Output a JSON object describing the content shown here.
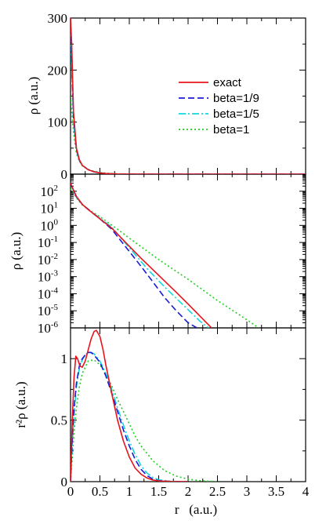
{
  "figure": {
    "xlabel": "r   (a.u.)",
    "x_ticks": [
      "0",
      "0.5",
      "1",
      "1.5",
      "2",
      "2.5",
      "3",
      "3.5",
      "4"
    ],
    "xlim": [
      0,
      4
    ]
  },
  "legend": {
    "placement": "top-right of top panel",
    "entries": [
      {
        "name": "exact",
        "color": "#e8141b",
        "dash": "solid"
      },
      {
        "name": "beta=1/9",
        "color": "#1a1ad6",
        "dash": "dashed"
      },
      {
        "name": "beta=1/5",
        "color": "#10d8e0",
        "dash": "dashdot"
      },
      {
        "name": "beta=1",
        "color": "#22cc22",
        "dash": "dotted"
      }
    ]
  },
  "chart_data": [
    {
      "type": "line",
      "panel": "top",
      "ylabel": "ρ  (a.u.)",
      "y_scale": "linear",
      "xlim": [
        0,
        4
      ],
      "ylim": [
        0,
        300
      ],
      "y_ticks": [
        "0",
        "100",
        "200",
        "300"
      ],
      "series": [
        {
          "name": "exact",
          "x": [
            0.0,
            0.02,
            0.05,
            0.1,
            0.15,
            0.2,
            0.3,
            0.4,
            0.5,
            0.6,
            0.8,
            1.0,
            1.5,
            2.0,
            4.0
          ],
          "y": [
            300,
            250,
            120,
            50,
            28,
            17,
            8.5,
            4.5,
            2.4,
            1.2,
            0.3,
            0.06,
            0.0,
            0.0,
            0.0
          ]
        },
        {
          "name": "beta=1/9",
          "x": [
            0.0,
            0.02,
            0.05,
            0.1,
            0.15,
            0.2,
            0.3,
            0.4,
            0.5,
            0.6,
            0.8,
            1.0,
            1.5,
            2.0,
            4.0
          ],
          "y": [
            300,
            230,
            110,
            48,
            27,
            17,
            8.7,
            4.6,
            2.4,
            1.1,
            0.2,
            0.03,
            0.0,
            0.0,
            0.0
          ]
        },
        {
          "name": "beta=1/5",
          "x": [
            0.0,
            0.02,
            0.05,
            0.1,
            0.15,
            0.2,
            0.3,
            0.4,
            0.5,
            0.6,
            0.8,
            1.0,
            1.5,
            2.0,
            4.0
          ],
          "y": [
            300,
            200,
            100,
            45,
            26,
            17,
            9,
            4.8,
            2.6,
            1.3,
            0.25,
            0.04,
            0.0,
            0.0,
            0.0
          ]
        },
        {
          "name": "beta=1",
          "x": [
            0.0,
            0.02,
            0.05,
            0.1,
            0.15,
            0.2,
            0.3,
            0.4,
            0.5,
            0.6,
            0.8,
            1.0,
            1.5,
            2.0,
            4.0
          ],
          "y": [
            150,
            120,
            80,
            40,
            25,
            16,
            9,
            5.5,
            3.2,
            1.9,
            0.6,
            0.18,
            0.01,
            0.0,
            0.0
          ]
        }
      ]
    },
    {
      "type": "line",
      "panel": "middle",
      "ylabel": "ρ  (a.u.)",
      "y_scale": "log",
      "xlim": [
        0,
        4
      ],
      "ylim": [
        1e-06,
        1000
      ],
      "y_ticks": [
        "10^2",
        "10^1",
        "10^0",
        "10^-1",
        "10^-2",
        "10^-3",
        "10^-4",
        "10^-5",
        "10^-6"
      ],
      "series": [
        {
          "name": "exact",
          "x": [
            0.0,
            0.05,
            0.1,
            0.2,
            0.3,
            0.5,
            0.7,
            1.0,
            1.2,
            1.5,
            1.8,
            2.0,
            2.2,
            2.4
          ],
          "y": [
            300,
            120,
            50,
            17,
            8.5,
            2.4,
            0.7,
            0.06,
            0.012,
            0.0012,
            0.00012,
            2.5e-05,
            5e-06,
            1e-06
          ]
        },
        {
          "name": "beta=1/9",
          "x": [
            0.0,
            0.05,
            0.1,
            0.2,
            0.3,
            0.5,
            0.7,
            1.0,
            1.2,
            1.4,
            1.6,
            1.8,
            2.0,
            2.15
          ],
          "y": [
            300,
            110,
            48,
            17,
            8.7,
            2.4,
            0.6,
            0.03,
            0.004,
            0.0005,
            6e-05,
            1e-05,
            2e-06,
            1e-06
          ]
        },
        {
          "name": "beta=1/5",
          "x": [
            0.0,
            0.05,
            0.1,
            0.2,
            0.3,
            0.5,
            0.7,
            1.0,
            1.3,
            1.6,
            1.9,
            2.2,
            2.35
          ],
          "y": [
            300,
            100,
            45,
            17,
            9,
            2.6,
            0.8,
            0.05,
            0.003,
            0.00025,
            2.5e-05,
            2.5e-06,
            1e-06
          ]
        },
        {
          "name": "beta=1",
          "x": [
            0.0,
            0.05,
            0.1,
            0.2,
            0.3,
            0.5,
            0.8,
            1.0,
            1.5,
            2.0,
            2.5,
            3.0,
            3.2
          ],
          "y": [
            150,
            80,
            40,
            16,
            9,
            3.2,
            0.6,
            0.18,
            0.01,
            0.0007,
            4e-05,
            3e-06,
            1e-06
          ]
        }
      ]
    },
    {
      "type": "line",
      "panel": "bottom",
      "ylabel": "r²ρ  (a.u.)",
      "y_scale": "linear",
      "xlim": [
        0,
        4
      ],
      "ylim": [
        0,
        1.25
      ],
      "y_ticks": [
        "0",
        "0.5",
        "1"
      ],
      "series": [
        {
          "name": "exact",
          "x": [
            0.0,
            0.03,
            0.06,
            0.09,
            0.12,
            0.16,
            0.2,
            0.25,
            0.3,
            0.35,
            0.4,
            0.44,
            0.5,
            0.55,
            0.6,
            0.7,
            0.8,
            0.9,
            1.0,
            1.1,
            1.2,
            1.3,
            1.4,
            1.5,
            1.7,
            2.0
          ],
          "y": [
            0.0,
            0.5,
            0.85,
            1.02,
            1.0,
            0.94,
            0.93,
            0.98,
            1.07,
            1.16,
            1.22,
            1.23,
            1.18,
            1.08,
            0.95,
            0.72,
            0.5,
            0.33,
            0.2,
            0.11,
            0.06,
            0.03,
            0.013,
            0.006,
            0.001,
            0.0
          ]
        },
        {
          "name": "beta=1/9",
          "x": [
            0.0,
            0.03,
            0.06,
            0.1,
            0.15,
            0.2,
            0.25,
            0.3,
            0.35,
            0.4,
            0.5,
            0.6,
            0.7,
            0.8,
            0.9,
            1.0,
            1.1,
            1.2,
            1.3,
            1.4,
            1.5,
            1.7,
            2.0
          ],
          "y": [
            0.0,
            0.35,
            0.6,
            0.8,
            0.94,
            1.0,
            1.03,
            1.05,
            1.05,
            1.03,
            0.97,
            0.86,
            0.72,
            0.57,
            0.42,
            0.29,
            0.18,
            0.1,
            0.05,
            0.02,
            0.008,
            0.001,
            0.0
          ]
        },
        {
          "name": "beta=1/5",
          "x": [
            0.0,
            0.03,
            0.06,
            0.1,
            0.15,
            0.2,
            0.25,
            0.3,
            0.35,
            0.4,
            0.5,
            0.6,
            0.7,
            0.8,
            0.9,
            1.0,
            1.1,
            1.2,
            1.3,
            1.4,
            1.5,
            1.7,
            2.0
          ],
          "y": [
            0.0,
            0.3,
            0.55,
            0.77,
            0.92,
            0.99,
            1.03,
            1.05,
            1.05,
            1.04,
            0.98,
            0.88,
            0.75,
            0.6,
            0.46,
            0.33,
            0.22,
            0.13,
            0.07,
            0.035,
            0.015,
            0.003,
            0.0
          ]
        },
        {
          "name": "beta=1",
          "x": [
            0.0,
            0.03,
            0.06,
            0.1,
            0.15,
            0.2,
            0.3,
            0.4,
            0.5,
            0.6,
            0.7,
            0.8,
            0.9,
            1.0,
            1.1,
            1.2,
            1.4,
            1.6,
            1.8,
            2.0,
            2.2,
            2.5
          ],
          "y": [
            0.0,
            0.2,
            0.4,
            0.6,
            0.77,
            0.88,
            0.98,
            0.99,
            0.95,
            0.88,
            0.78,
            0.67,
            0.57,
            0.47,
            0.37,
            0.29,
            0.17,
            0.09,
            0.045,
            0.02,
            0.008,
            0.0
          ]
        }
      ]
    }
  ]
}
